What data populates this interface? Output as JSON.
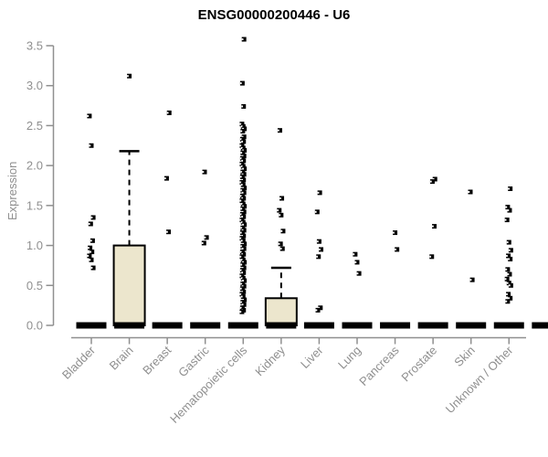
{
  "title": "ENSG00000200446 - U6",
  "colors": {
    "box_fill": "#ece6cd",
    "box_stroke": "#000000",
    "marker": "#000000",
    "axis": "#8f8f8f",
    "tick_text": "#8f8f8f",
    "title_text": "#000000",
    "background": "#ffffff"
  },
  "chart_data": {
    "type": "boxplot-scatter",
    "title": "ENSG00000200446 - U6",
    "xlabel": "",
    "ylabel": "Expression",
    "ylim": [
      0,
      3.5
    ],
    "ytick_labels": [
      "0.0",
      "0.5",
      "1.0",
      "1.5",
      "2.0",
      "2.5",
      "3.0",
      "3.5"
    ],
    "grid": false,
    "legend": "none",
    "categories": [
      "Bladder",
      "Brain",
      "Breast",
      "Gastric",
      "Hematopoietic cells",
      "Kidney",
      "Liver",
      "Lung",
      "Pancreas",
      "Prostate",
      "Skin",
      "Unknown / Other"
    ],
    "extra_partial_bar_right": true,
    "series": [
      {
        "name": "Bladder",
        "box": {
          "q1": 0,
          "median": 0,
          "q3": 0,
          "whisker_high": 0
        },
        "points": [
          2.62,
          2.25,
          1.35,
          1.27,
          1.06,
          0.97,
          0.92,
          0.87,
          0.82,
          0.72
        ]
      },
      {
        "name": "Brain",
        "box": {
          "q1": 0,
          "median": 0,
          "q3": 1.0,
          "whisker_high": 2.18
        },
        "points": [
          3.12
        ]
      },
      {
        "name": "Breast",
        "box": {
          "q1": 0,
          "median": 0,
          "q3": 0,
          "whisker_high": 0
        },
        "points": [
          2.66,
          1.84,
          1.17
        ]
      },
      {
        "name": "Gastric",
        "box": {
          "q1": 0,
          "median": 0,
          "q3": 0,
          "whisker_high": 0
        },
        "points": [
          1.92,
          1.1,
          1.03
        ]
      },
      {
        "name": "Hematopoietic cells",
        "box": {
          "q1": 0,
          "median": 0,
          "q3": 0,
          "whisker_high": 0
        },
        "points": [
          3.58,
          3.03,
          2.74,
          2.52,
          2.49,
          2.46,
          2.43,
          2.36,
          2.33,
          2.3,
          2.25,
          2.22,
          2.19,
          2.16,
          2.12,
          2.09,
          2.06,
          2.02,
          1.99,
          1.96,
          1.92,
          1.89,
          1.86,
          1.82,
          1.79,
          1.76,
          1.72,
          1.69,
          1.66,
          1.62,
          1.59,
          1.56,
          1.52,
          1.49,
          1.46,
          1.42,
          1.39,
          1.36,
          1.32,
          1.29,
          1.26,
          1.22,
          1.19,
          1.16,
          1.12,
          1.09,
          1.06,
          1.02,
          0.99,
          0.96,
          0.92,
          0.89,
          0.86,
          0.82,
          0.79,
          0.76,
          0.72,
          0.69,
          0.66,
          0.62,
          0.59,
          0.56,
          0.52,
          0.49,
          0.46,
          0.42,
          0.39,
          0.36,
          0.32,
          0.29,
          0.26,
          0.22,
          0.19,
          0.17
        ]
      },
      {
        "name": "Kidney",
        "box": {
          "q1": 0,
          "median": 0,
          "q3": 0.34,
          "whisker_high": 0.72
        },
        "points": [
          2.44,
          1.59,
          1.44,
          1.38,
          1.18,
          1.02,
          0.96
        ]
      },
      {
        "name": "Liver",
        "box": {
          "q1": 0,
          "median": 0,
          "q3": 0,
          "whisker_high": 0
        },
        "points": [
          1.66,
          1.42,
          1.05,
          0.95,
          0.86,
          0.22,
          0.19
        ]
      },
      {
        "name": "Lung",
        "box": {
          "q1": 0,
          "median": 0,
          "q3": 0,
          "whisker_high": 0
        },
        "points": [
          0.89,
          0.79,
          0.65
        ]
      },
      {
        "name": "Pancreas",
        "box": {
          "q1": 0,
          "median": 0,
          "q3": 0,
          "whisker_high": 0
        },
        "points": [
          1.16,
          0.95
        ]
      },
      {
        "name": "Prostate",
        "box": {
          "q1": 0,
          "median": 0,
          "q3": 0,
          "whisker_high": 0
        },
        "points": [
          1.83,
          1.8,
          1.24,
          0.86
        ]
      },
      {
        "name": "Skin",
        "box": {
          "q1": 0,
          "median": 0,
          "q3": 0,
          "whisker_high": 0
        },
        "points": [
          1.67,
          0.57
        ]
      },
      {
        "name": "Unknown / Other",
        "box": {
          "q1": 0,
          "median": 0,
          "q3": 0,
          "whisker_high": 0
        },
        "points": [
          1.71,
          1.48,
          1.44,
          1.32,
          1.04,
          0.94,
          0.87,
          0.83,
          0.7,
          0.64,
          0.58,
          0.53,
          0.5,
          0.39,
          0.34,
          0.3
        ]
      }
    ]
  }
}
